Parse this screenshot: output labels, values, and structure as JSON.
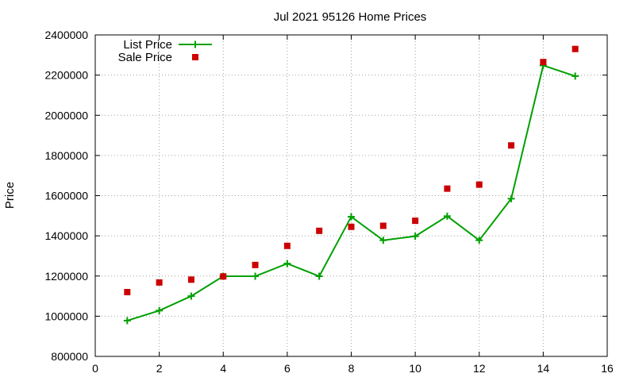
{
  "chart_data": {
    "type": "line",
    "title": "Jul 2021 95126 Home Prices",
    "xlabel": "",
    "ylabel": "Price",
    "xlim": [
      0,
      16
    ],
    "ylim": [
      800000,
      2400000
    ],
    "xticks": [
      0,
      2,
      4,
      6,
      8,
      10,
      12,
      14,
      16
    ],
    "yticks": [
      800000,
      1000000,
      1200000,
      1400000,
      1600000,
      1800000,
      2000000,
      2200000,
      2400000
    ],
    "grid": true,
    "legend_position": "top-left",
    "series": [
      {
        "name": "List Price",
        "type": "line",
        "marker": "plus",
        "color": "#00a000",
        "x": [
          1,
          2,
          3,
          4,
          5,
          6,
          7,
          8,
          9,
          10,
          11,
          12,
          13,
          14,
          15
        ],
        "y": [
          978000,
          1028000,
          1100000,
          1199000,
          1199000,
          1262000,
          1199000,
          1495000,
          1378000,
          1398000,
          1498000,
          1378000,
          1585000,
          2248000,
          2195000
        ]
      },
      {
        "name": "Sale Price",
        "type": "scatter",
        "marker": "square",
        "color": "#cc0000",
        "x": [
          1,
          2,
          3,
          4,
          5,
          6,
          7,
          8,
          9,
          10,
          11,
          12,
          13,
          14,
          15
        ],
        "y": [
          1120000,
          1168000,
          1182000,
          1198000,
          1255000,
          1350000,
          1425000,
          1445000,
          1450000,
          1475000,
          1635000,
          1655000,
          1850000,
          2265000,
          2330000
        ]
      }
    ]
  }
}
